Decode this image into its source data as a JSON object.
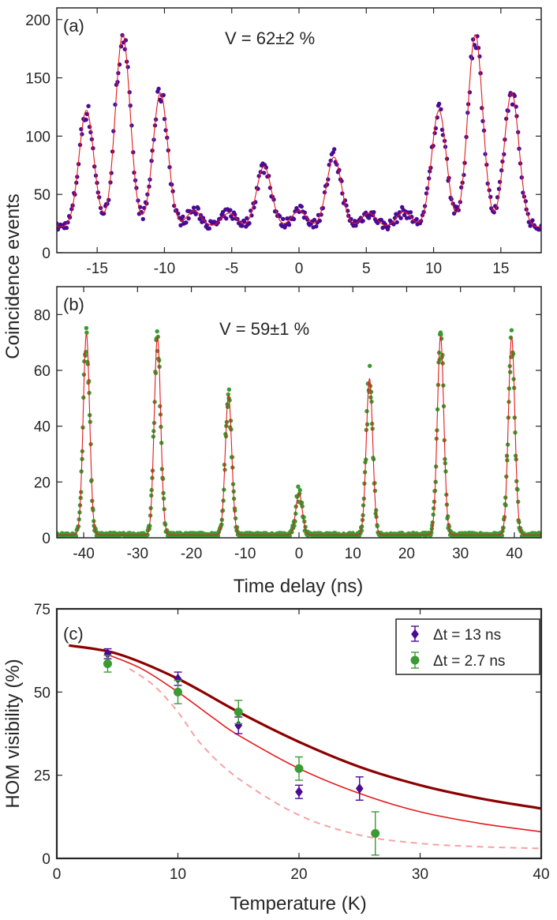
{
  "colors": {
    "purple": "#4B0A96",
    "green": "#3A9B32",
    "fit_red": "#E41A1C",
    "dark_red": "#8B0000",
    "light_red": "#F4A3A3"
  },
  "chart_data": [
    {
      "type": "scatter",
      "panel_label": "(a)",
      "annotation": "V = 62±2 %",
      "ylabel": "Coincidence events",
      "xlim": [
        -18,
        18
      ],
      "ylim": [
        0,
        210
      ],
      "xticks": [
        "-15",
        "-10",
        "-5",
        "0",
        "5",
        "10",
        "15"
      ],
      "xtick_values": [
        -15,
        -10,
        -5,
        0,
        5,
        10,
        15
      ],
      "yticks": [
        "0",
        "50",
        "100",
        "150",
        "200"
      ],
      "ytick_values": [
        0,
        50,
        100,
        150,
        200
      ],
      "series": [
        {
          "marker": "dot",
          "color": "purple",
          "peaks": [
            {
              "x": -15.8,
              "height": 100
            },
            {
              "x": -13.1,
              "height": 165
            },
            {
              "x": -10.3,
              "height": 115
            },
            {
              "x": -7.8,
              "height": 14
            },
            {
              "x": -5.2,
              "height": 12
            },
            {
              "x": -2.6,
              "height": 52
            },
            {
              "x": 0.0,
              "height": 14
            },
            {
              "x": 2.6,
              "height": 60
            },
            {
              "x": 5.2,
              "height": 12
            },
            {
              "x": 7.8,
              "height": 13
            },
            {
              "x": 10.4,
              "height": 100
            },
            {
              "x": 13.1,
              "height": 165
            },
            {
              "x": 15.8,
              "height": 115
            }
          ],
          "baseline": 22,
          "peak_width_ns": 0.55
        },
        {
          "marker": "line",
          "color": "fit_red",
          "fit": true
        }
      ]
    },
    {
      "type": "scatter",
      "panel_label": "(b)",
      "annotation": "V = 59±1 %",
      "xlabel": "Time delay (ns)",
      "xlim": [
        -45,
        45
      ],
      "ylim": [
        0,
        90
      ],
      "xticks": [
        "-40",
        "-30",
        "-20",
        "-10",
        "0",
        "10",
        "20",
        "30",
        "40"
      ],
      "xtick_values": [
        -40,
        -30,
        -20,
        -10,
        0,
        10,
        20,
        30,
        40
      ],
      "yticks": [
        "0",
        "20",
        "40",
        "60",
        "80"
      ],
      "ytick_values": [
        0,
        20,
        40,
        60,
        80
      ],
      "series": [
        {
          "marker": "dot",
          "color": "green",
          "peaks": [
            {
              "x": -39.5,
              "height": 72
            },
            {
              "x": -26.3,
              "height": 71
            },
            {
              "x": -13.1,
              "height": 50
            },
            {
              "x": 0.0,
              "height": 15
            },
            {
              "x": 13.1,
              "height": 56
            },
            {
              "x": 26.3,
              "height": 71
            },
            {
              "x": 39.5,
              "height": 71
            }
          ],
          "baseline": 1,
          "peak_width_ns": 0.6
        },
        {
          "marker": "line",
          "color": "fit_red",
          "fit": true
        }
      ]
    },
    {
      "type": "scatter",
      "panel_label": "(c)",
      "xlabel": "Temperature (K)",
      "ylabel": "HOM visibility (%)",
      "xlim": [
        0,
        40
      ],
      "ylim": [
        0,
        75
      ],
      "xticks": [
        "0",
        "10",
        "20",
        "30",
        "40"
      ],
      "xtick_values": [
        0,
        10,
        20,
        30,
        40
      ],
      "yticks": [
        "0",
        "25",
        "50",
        "75"
      ],
      "ytick_values": [
        0,
        25,
        50,
        75
      ],
      "legend": "top-right",
      "series": [
        {
          "name": "Δt = 13 ns",
          "marker": "diamond",
          "color": "purple",
          "x": [
            4.2,
            10,
            15,
            20,
            25
          ],
          "y": [
            61.5,
            54,
            40,
            20,
            21
          ],
          "err": [
            1.5,
            2,
            2.5,
            2,
            3.5
          ]
        },
        {
          "name": "Δt = 2.7 ns",
          "marker": "circle",
          "color": "green",
          "x": [
            4.2,
            10,
            15,
            20,
            26.3
          ],
          "y": [
            58.5,
            50,
            44,
            27,
            7.5
          ],
          "err": [
            2.5,
            3.5,
            3.5,
            3.5,
            6.5
          ]
        }
      ],
      "curves": [
        {
          "style": "thick",
          "color": "dark_red",
          "x": [
            1,
            5,
            10,
            15,
            20,
            25,
            30,
            35,
            40
          ],
          "y": [
            64,
            61.5,
            54,
            44,
            35,
            27.5,
            22,
            18,
            15
          ]
        },
        {
          "style": "thin",
          "color": "fit_red",
          "x": [
            4,
            7,
            10,
            13,
            15,
            20,
            25,
            30,
            35,
            40
          ],
          "y": [
            61.5,
            57,
            50,
            42,
            37,
            27,
            19.5,
            14,
            10.5,
            8
          ]
        },
        {
          "style": "dashed",
          "color": "light_red",
          "x": [
            6,
            8,
            10,
            12,
            15,
            20,
            25,
            30,
            35,
            40
          ],
          "y": [
            57,
            52,
            44,
            34,
            24,
            13,
            7,
            4.5,
            3.5,
            3
          ]
        }
      ]
    }
  ]
}
